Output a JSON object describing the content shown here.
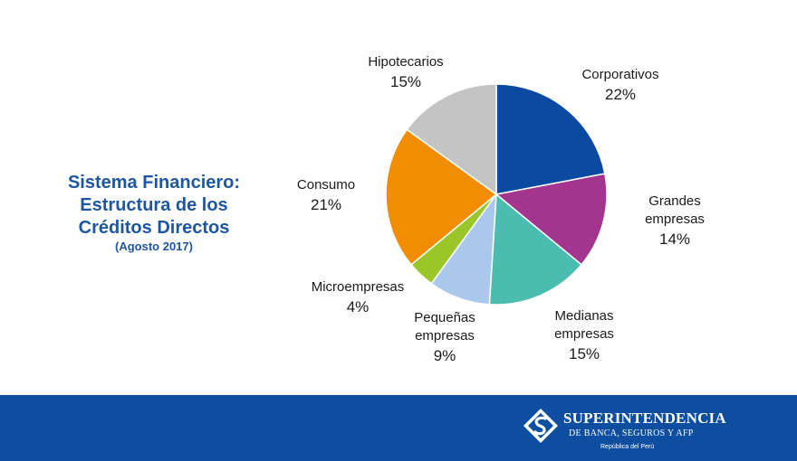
{
  "title": {
    "lines": [
      "Sistema Financiero:",
      "Estructura de los",
      "Créditos Directos"
    ],
    "subtitle": "(Agosto 2017)"
  },
  "chart_data": {
    "type": "pie",
    "title": "Sistema Financiero: Estructura de los Créditos Directos",
    "subtitle": "(Agosto 2017)",
    "slices": [
      {
        "name": "Corporativos",
        "label_lines": [
          "Corporativos"
        ],
        "value": 22,
        "value_label": "22%",
        "color": "#0a4aa0"
      },
      {
        "name": "Grandes empresas",
        "label_lines": [
          "Grandes",
          "empresas"
        ],
        "value": 14,
        "value_label": "14%",
        "color": "#a3358e"
      },
      {
        "name": "Medianas empresas",
        "label_lines": [
          "Medianas",
          "empresas"
        ],
        "value": 15,
        "value_label": "15%",
        "color": "#4abdb0"
      },
      {
        "name": "Pequeñas empresas",
        "label_lines": [
          "Pequeñas",
          "empresas"
        ],
        "value": 9,
        "value_label": "9%",
        "color": "#a9c8eb"
      },
      {
        "name": "Microempresas",
        "label_lines": [
          "Microempresas"
        ],
        "value": 4,
        "value_label": "4%",
        "color": "#9ac62a"
      },
      {
        "name": "Consumo",
        "label_lines": [
          "Consumo"
        ],
        "value": 21,
        "value_label": "21%",
        "color": "#f28c00"
      },
      {
        "name": "Hipotecarios",
        "label_lines": [
          "Hipotecarios"
        ],
        "value": 15,
        "value_label": "15%",
        "color": "#c4c4c4"
      }
    ],
    "start_angle_deg": 0,
    "direction": "clockwise"
  },
  "footer": {
    "logo_main": "SUPERINTENDENCIA",
    "logo_sub": "DE BANCA, SEGUROS Y AFP",
    "logo_country": "República del Perú",
    "background": "#0d4ea0"
  }
}
